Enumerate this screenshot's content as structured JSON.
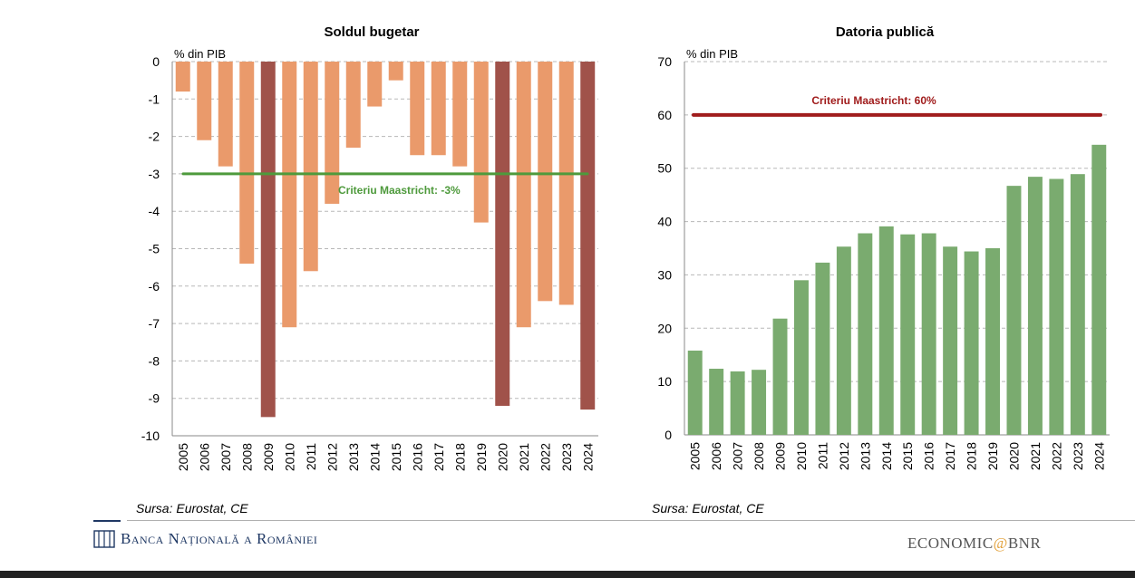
{
  "chart_data": [
    {
      "type": "bar",
      "title": "Soldul bugetar",
      "ylabel": "% din PIB",
      "ylim": [
        -10,
        0
      ],
      "yticks": [
        0,
        -1,
        -2,
        -3,
        -4,
        -5,
        -6,
        -7,
        -8,
        -9,
        -10
      ],
      "grid": true,
      "categories": [
        "2005",
        "2006",
        "2007",
        "2008",
        "2009",
        "2010",
        "2011",
        "2012",
        "2013",
        "2014",
        "2015",
        "2016",
        "2017",
        "2018",
        "2019",
        "2020",
        "2021",
        "2022",
        "2023",
        "2024"
      ],
      "values": [
        -0.8,
        -2.1,
        -2.8,
        -5.4,
        -9.5,
        -7.1,
        -5.6,
        -3.8,
        -2.3,
        -1.2,
        -0.5,
        -2.5,
        -2.5,
        -2.8,
        -4.3,
        -9.2,
        -7.1,
        -6.4,
        -6.5,
        -9.3
      ],
      "highlight_years": [
        "2009",
        "2020",
        "2024"
      ],
      "colors": {
        "normal": "#ea9a6b",
        "highlight": "#a0524a",
        "reference": "#4e9a3c"
      },
      "reference_line": {
        "value": -3,
        "label": "Criteriu Maastricht: -3%"
      }
    },
    {
      "type": "bar",
      "title": "Datoria publică",
      "ylabel": "% din PIB",
      "ylim": [
        0,
        70
      ],
      "yticks": [
        0,
        10,
        20,
        30,
        40,
        50,
        60,
        70
      ],
      "grid": true,
      "categories": [
        "2005",
        "2006",
        "2007",
        "2008",
        "2009",
        "2010",
        "2011",
        "2012",
        "2013",
        "2014",
        "2015",
        "2016",
        "2017",
        "2018",
        "2019",
        "2020",
        "2021",
        "2022",
        "2023",
        "2024"
      ],
      "values": [
        15.8,
        12.4,
        11.9,
        12.2,
        21.8,
        29.0,
        32.3,
        35.3,
        37.8,
        39.1,
        37.6,
        37.8,
        35.3,
        34.4,
        35.0,
        46.7,
        48.4,
        48.0,
        48.9,
        54.4
      ],
      "colors": {
        "bar": "#7aab6f",
        "reference": "#a01c1c"
      },
      "reference_line": {
        "value": 60,
        "label": "Criteriu Maastricht: 60%"
      }
    }
  ],
  "footer": {
    "source_left": "Sursa: Eurostat, CE",
    "source_right": "Sursa: Eurostat, CE",
    "bnr_name": "Banca Națională a României",
    "economic_prefix": "ECONOMIC",
    "economic_at": "@",
    "economic_suffix": "BNR"
  }
}
